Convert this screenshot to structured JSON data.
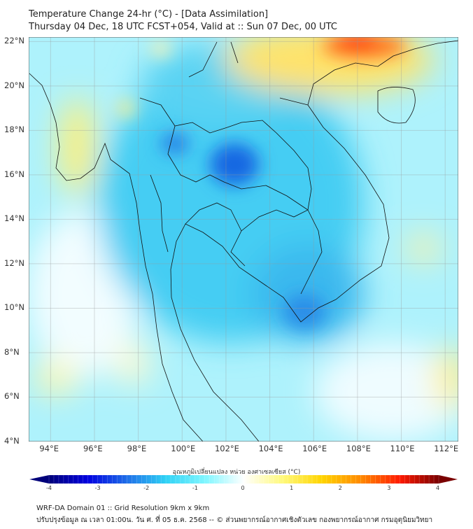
{
  "header": {
    "title": "Temperature Change 24-hr (°C) - [Data Assimilation]",
    "subtitle": "Thursday 04 Dec, 18 UTC FCST+054, Valid at :: Sun 07 Dec, 00 UTC"
  },
  "map": {
    "lat_labels": [
      "22°N",
      "20°N",
      "18°N",
      "16°N",
      "14°N",
      "12°N",
      "10°N",
      "8°N",
      "6°N",
      "4°N"
    ],
    "lat_values": [
      22,
      20,
      18,
      16,
      14,
      12,
      10,
      8,
      6,
      4
    ],
    "lon_labels": [
      "94°E",
      "96°E",
      "98°E",
      "100°E",
      "102°E",
      "104°E",
      "106°E",
      "108°E",
      "110°E",
      "112°E"
    ],
    "lon_values": [
      94,
      96,
      98,
      100,
      102,
      104,
      106,
      108,
      110,
      112
    ],
    "lon_range": [
      93.0,
      112.6
    ],
    "lat_range": [
      4.0,
      22.2
    ]
  },
  "colorbar": {
    "label": "อุณหภูมิเปลี่ยนแปลง หน่วย องศาเซลเซียส (°C)",
    "ticks": [
      "-4",
      "-3",
      "-2",
      "-1",
      "0",
      "1",
      "2",
      "3",
      "4"
    ],
    "tick_values": [
      -4,
      -3,
      -2,
      -1,
      0,
      1,
      2,
      3,
      4
    ],
    "colors": [
      "#00007a",
      "#0000e0",
      "#1f6fe8",
      "#2fd2f5",
      "#7ff6ff",
      "#ffffff",
      "#fff97a",
      "#ffd400",
      "#ff8a00",
      "#ff1a00",
      "#7a0000"
    ]
  },
  "footer": {
    "line1": "WRF-DA Domain 01 :: Grid Resolution 9km x 9km",
    "line2": "ปรับปรุงข้อมูล ณ เวลา 01:00น. วัน ศ. ที่ 05 ธ.ค. 2568 -- © ส่วนพยากรณ์อากาศเชิงตัวเลข กองพยากรณ์อากาศ กรมอุตุนิยมวิทยา"
  }
}
